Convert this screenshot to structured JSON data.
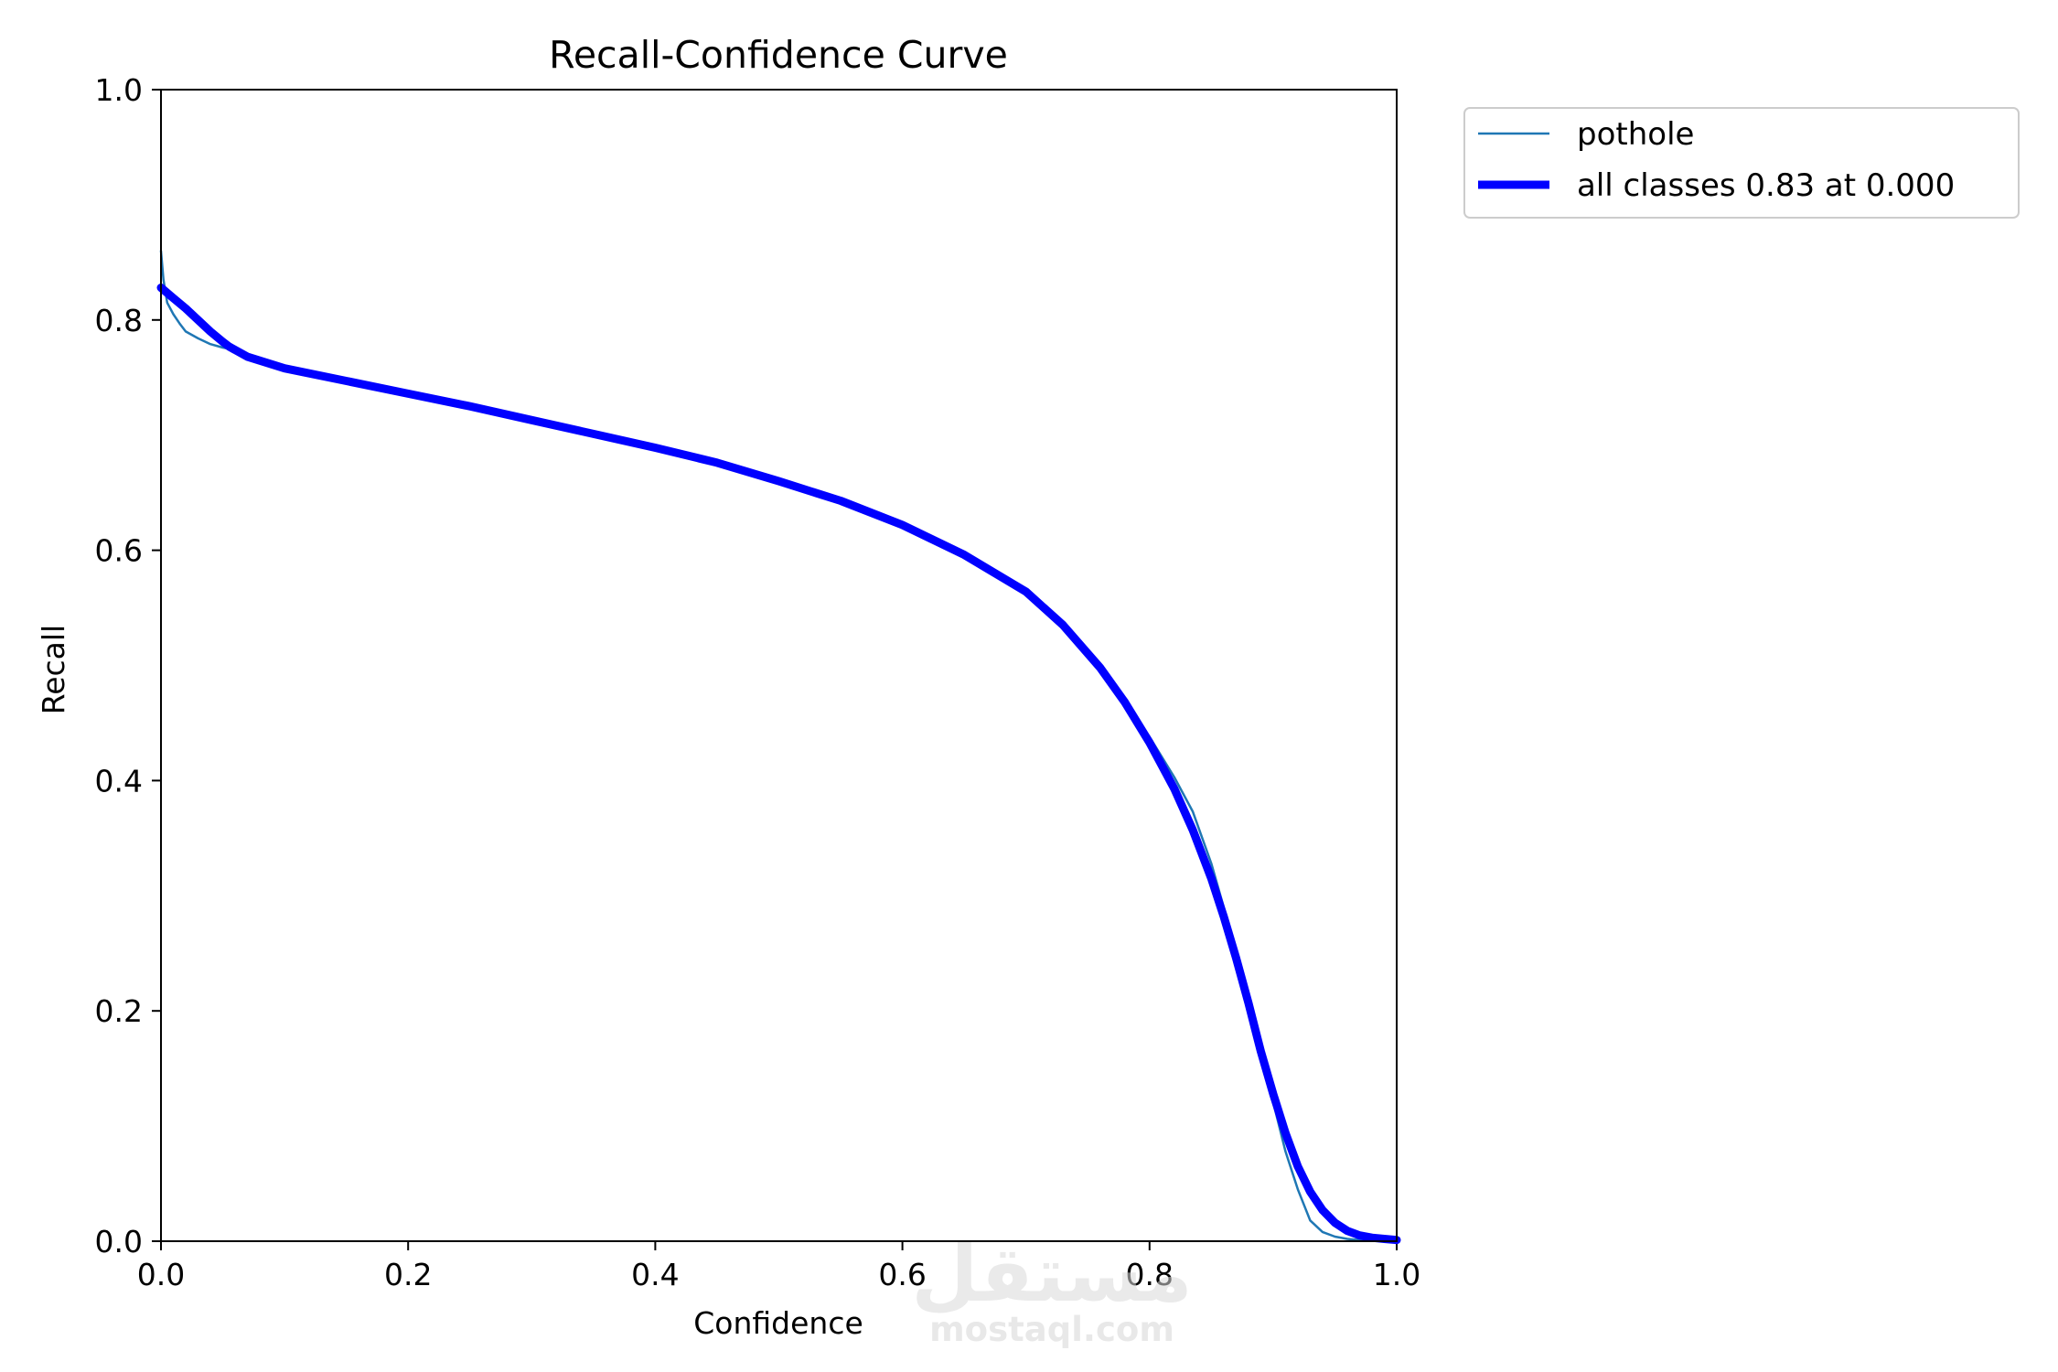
{
  "chart_data": {
    "type": "line",
    "title": "Recall-Confidence Curve",
    "xlabel": "Confidence",
    "ylabel": "Recall",
    "xlim": [
      0,
      1
    ],
    "ylim": [
      0,
      1
    ],
    "xticks": [
      0.0,
      0.2,
      0.4,
      0.6,
      0.8,
      1.0
    ],
    "yticks": [
      0.0,
      0.2,
      0.4,
      0.6,
      0.8,
      1.0
    ],
    "xtick_labels": [
      "0.0",
      "0.2",
      "0.4",
      "0.6",
      "0.8",
      "1.0"
    ],
    "ytick_labels": [
      "0.0",
      "0.2",
      "0.4",
      "0.6",
      "0.8",
      "1.0"
    ],
    "grid": false,
    "legend_position": "outside-top-right",
    "series": [
      {
        "name": "pothole",
        "color": "#1f77b4",
        "x": [
          0.0,
          0.002,
          0.005,
          0.01,
          0.015,
          0.02,
          0.03,
          0.04,
          0.05,
          0.055,
          0.07,
          0.1,
          0.15,
          0.2,
          0.25,
          0.3,
          0.35,
          0.4,
          0.45,
          0.5,
          0.55,
          0.6,
          0.65,
          0.7,
          0.73,
          0.76,
          0.78,
          0.8,
          0.82,
          0.835,
          0.85,
          0.86,
          0.87,
          0.88,
          0.89,
          0.9,
          0.91,
          0.92,
          0.93,
          0.94,
          0.95,
          0.96,
          0.97,
          0.98,
          1.0
        ],
        "y": [
          0.86,
          0.835,
          0.815,
          0.805,
          0.797,
          0.79,
          0.784,
          0.779,
          0.776,
          0.775,
          0.768,
          0.758,
          0.747,
          0.736,
          0.725,
          0.713,
          0.701,
          0.689,
          0.676,
          0.66,
          0.643,
          0.622,
          0.596,
          0.566,
          0.537,
          0.5,
          0.466,
          0.438,
          0.403,
          0.373,
          0.328,
          0.29,
          0.249,
          0.211,
          0.171,
          0.121,
          0.078,
          0.045,
          0.018,
          0.008,
          0.004,
          0.002,
          0.001,
          0.001,
          0.0
        ]
      },
      {
        "name": "all classes 0.83 at 0.000",
        "color": "#0000ff",
        "x": [
          0.0,
          0.01,
          0.02,
          0.03,
          0.04,
          0.05,
          0.055,
          0.07,
          0.1,
          0.15,
          0.2,
          0.25,
          0.3,
          0.35,
          0.4,
          0.45,
          0.5,
          0.55,
          0.6,
          0.65,
          0.7,
          0.73,
          0.76,
          0.78,
          0.8,
          0.82,
          0.835,
          0.85,
          0.86,
          0.87,
          0.88,
          0.89,
          0.9,
          0.91,
          0.92,
          0.93,
          0.94,
          0.95,
          0.96,
          0.97,
          0.98,
          0.99,
          1.0
        ],
        "y": [
          0.828,
          0.819,
          0.81,
          0.8,
          0.79,
          0.781,
          0.777,
          0.768,
          0.758,
          0.747,
          0.736,
          0.725,
          0.713,
          0.701,
          0.689,
          0.676,
          0.66,
          0.643,
          0.622,
          0.596,
          0.564,
          0.535,
          0.498,
          0.468,
          0.433,
          0.393,
          0.357,
          0.315,
          0.282,
          0.246,
          0.207,
          0.165,
          0.128,
          0.094,
          0.065,
          0.043,
          0.027,
          0.016,
          0.009,
          0.005,
          0.003,
          0.002,
          0.001
        ]
      }
    ]
  },
  "watermark": {
    "arabic": "مستقل",
    "latin": "mostaql.com"
  }
}
